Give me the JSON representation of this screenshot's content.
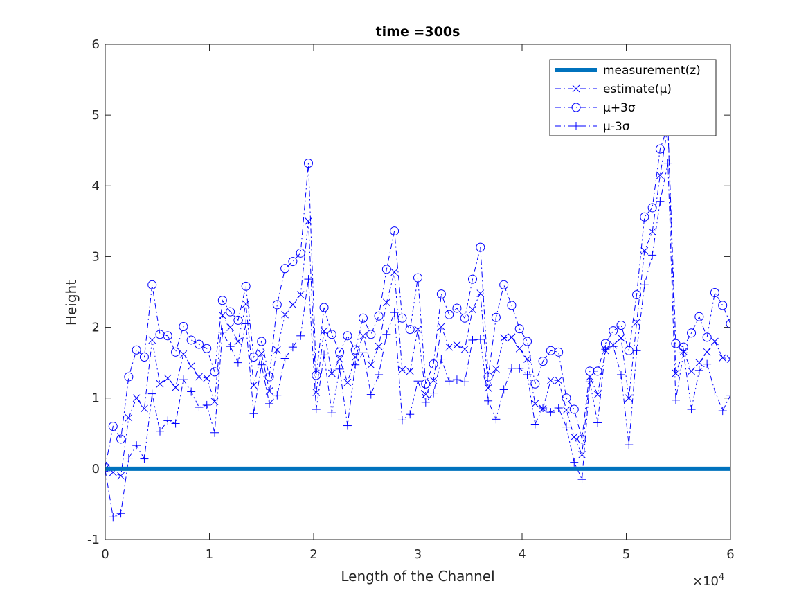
{
  "chart_data": {
    "type": "line",
    "title": "time =300s",
    "xlabel": "Length of the Channel",
    "ylabel": "Height",
    "x_exponent_label": "×10",
    "x_exponent_power": "4",
    "xlim": [
      0,
      60000
    ],
    "ylim": [
      -1,
      6
    ],
    "x_ticks": [
      0,
      10000,
      20000,
      30000,
      40000,
      50000,
      60000
    ],
    "x_tick_labels": [
      "0",
      "1",
      "2",
      "3",
      "4",
      "5",
      "6"
    ],
    "y_ticks": [
      -1,
      0,
      1,
      2,
      3,
      4,
      5,
      6
    ],
    "y_tick_labels": [
      "-1",
      "0",
      "1",
      "2",
      "3",
      "4",
      "5",
      "6"
    ],
    "grid": false,
    "legend_position": "top-right",
    "legend": [
      {
        "label": "measurement(z)",
        "style": "solid-thick"
      },
      {
        "label": "estimate(μ)",
        "style": "dashdot-x"
      },
      {
        "label": "μ+3σ",
        "style": "dashdot-o"
      },
      {
        "label": "μ-3σ",
        "style": "dashdot-plus"
      }
    ],
    "colors": {
      "measurement": "#0072bd",
      "estimate": "#0000ff"
    },
    "x": [
      0,
      750,
      1500,
      2250,
      3000,
      3750,
      4500,
      5250,
      6000,
      6750,
      7500,
      8250,
      9000,
      9750,
      10500,
      11250,
      12000,
      12750,
      13500,
      14250,
      15000,
      15750,
      16500,
      17250,
      18000,
      18750,
      19500,
      20250,
      21000,
      21750,
      22500,
      23250,
      24000,
      24750,
      25500,
      26250,
      27000,
      27750,
      28500,
      29250,
      30000,
      30750,
      31500,
      32250,
      33000,
      33750,
      34500,
      35250,
      36000,
      36750,
      37500,
      38250,
      39000,
      39750,
      40500,
      41250,
      42000,
      42750,
      43500,
      44250,
      45000,
      45750,
      46500,
      47250,
      48000,
      48750,
      49500,
      50250,
      51000,
      51750,
      52500,
      53250,
      54000,
      54750,
      55500,
      56250,
      57000,
      57750,
      58500,
      59250,
      60000
    ],
    "series": [
      {
        "name": "measurement(z)",
        "values": [
          0,
          0,
          0,
          0,
          0,
          0,
          0,
          0,
          0,
          0,
          0,
          0,
          0,
          0,
          0,
          0,
          0,
          0,
          0,
          0,
          0,
          0,
          0,
          0,
          0,
          0,
          0,
          0,
          0,
          0,
          0,
          0,
          0,
          0,
          0,
          0,
          0,
          0,
          0,
          0,
          0,
          0,
          0,
          0,
          0,
          0,
          0,
          0,
          0,
          0,
          0,
          0,
          0,
          0,
          0,
          0,
          0,
          0,
          0,
          0,
          0,
          0,
          0,
          0,
          0,
          0,
          0,
          0,
          0,
          0,
          0,
          0,
          0,
          0,
          0,
          0,
          0,
          0,
          0,
          0,
          0
        ]
      },
      {
        "name": "estimate(μ)",
        "values": [
          0,
          -0.05,
          -0.1,
          0.72,
          1.0,
          0.85,
          1.82,
          1.2,
          1.28,
          1.15,
          1.62,
          1.45,
          1.3,
          1.28,
          0.95,
          2.17,
          2.0,
          1.8,
          2.33,
          1.18,
          1.63,
          1.1,
          1.68,
          2.18,
          2.32,
          2.46,
          3.5,
          1.08,
          1.95,
          1.35,
          1.55,
          1.22,
          1.58,
          1.88,
          1.47,
          1.73,
          2.35,
          2.78,
          1.4,
          1.38,
          1.97,
          1.05,
          1.25,
          2.01,
          1.72,
          1.75,
          1.69,
          2.25,
          2.48,
          1.14,
          1.41,
          1.85,
          1.86,
          1.7,
          1.55,
          0.92,
          0.85,
          1.25,
          1.25,
          0.83,
          0.45,
          0.2,
          1.3,
          1.05,
          1.67,
          1.75,
          1.85,
          1.0,
          2.07,
          3.08,
          3.35,
          4.15,
          4.85,
          1.35,
          1.66,
          1.38,
          1.5,
          1.65,
          1.8,
          1.57,
          1.55
        ]
      },
      {
        "name": "μ+3σ",
        "values": [
          0.02,
          0.6,
          0.42,
          1.3,
          1.68,
          1.58,
          2.6,
          1.9,
          1.88,
          1.65,
          2.01,
          1.82,
          1.76,
          1.7,
          1.37,
          2.38,
          2.22,
          2.1,
          2.58,
          1.58,
          1.8,
          1.3,
          2.32,
          2.83,
          2.93,
          3.05,
          4.32,
          1.32,
          2.28,
          1.9,
          1.65,
          1.88,
          1.68,
          2.13,
          1.9,
          2.16,
          2.82,
          3.36,
          2.13,
          1.97,
          2.7,
          1.2,
          1.48,
          2.47,
          2.18,
          2.27,
          2.13,
          2.68,
          3.13,
          1.3,
          2.14,
          2.6,
          2.31,
          1.98,
          1.8,
          1.2,
          1.52,
          1.67,
          1.65,
          1.0,
          0.84,
          0.42,
          1.38,
          1.38,
          1.77,
          1.95,
          2.03,
          1.67,
          2.46,
          3.56,
          3.69,
          4.52,
          4.85,
          1.77,
          1.72,
          1.92,
          2.15,
          1.86,
          2.49,
          2.31,
          2.05
        ]
      },
      {
        "name": "μ-3σ",
        "values": [
          -0.02,
          -0.68,
          -0.63,
          0.15,
          0.33,
          0.14,
          1.06,
          0.53,
          0.68,
          0.64,
          1.26,
          1.09,
          0.87,
          0.9,
          0.51,
          1.93,
          1.73,
          1.5,
          2.05,
          0.78,
          1.47,
          0.92,
          1.04,
          1.56,
          1.72,
          1.88,
          2.68,
          0.84,
          1.61,
          0.79,
          1.41,
          0.61,
          1.47,
          1.64,
          1.05,
          1.33,
          1.9,
          2.21,
          0.69,
          0.77,
          1.24,
          0.94,
          1.07,
          1.55,
          1.24,
          1.26,
          1.23,
          1.82,
          1.83,
          0.96,
          0.7,
          1.12,
          1.42,
          1.42,
          1.33,
          0.63,
          0.86,
          0.8,
          0.86,
          0.59,
          0.09,
          -0.15,
          1.23,
          0.65,
          1.69,
          1.73,
          1.33,
          0.34,
          1.67,
          2.6,
          3.02,
          3.78,
          4.32,
          0.97,
          1.64,
          0.84,
          1.39,
          1.48,
          1.1,
          0.82,
          1.04
        ]
      }
    ]
  }
}
